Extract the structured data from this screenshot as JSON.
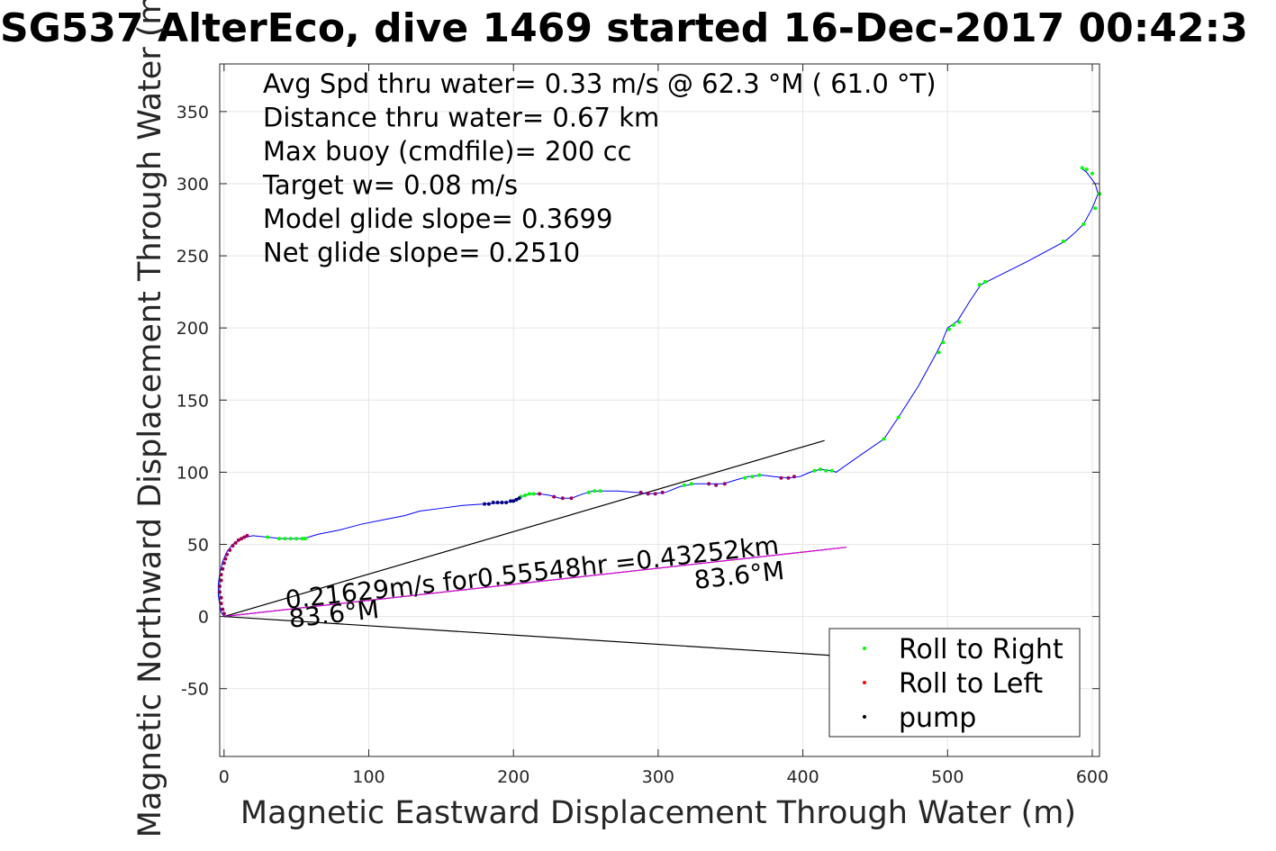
{
  "chart_data": {
    "type": "scatter",
    "title": "SG537 AlterEco, dive 1469 started 16-Dec-2017 00:42:3",
    "xlabel": "Magnetic Eastward Displacement Through Water (m)",
    "ylabel": "Magnetic Northward Displacement Through Water (m)",
    "xlim": [
      -3,
      605
    ],
    "ylim": [
      -97,
      383
    ],
    "xticks": [
      0,
      100,
      200,
      300,
      400,
      500,
      600
    ],
    "yticks": [
      -50,
      0,
      50,
      100,
      150,
      200,
      250,
      300,
      350
    ],
    "grid": true,
    "legend_position": "bottom-right",
    "annotations": [
      "Avg Spd thru water=  0.33 m/s @  62.3 °M ( 61.0 °T)",
      "Distance thru water=  0.67 km",
      "Max buoy (cmdfile)= 200 cc",
      "Target w= 0.08 m/s",
      "Model glide slope= 0.3699",
      "Net glide slope= 0.2510"
    ],
    "current_label": "0.21629m/s for0.55548hr =0.43252km",
    "current_heading_label_1": "83.6°M",
    "current_heading_label_2": "83.6°M",
    "track": [
      [
        0,
        0
      ],
      [
        -2,
        3
      ],
      [
        -3,
        8
      ],
      [
        -4,
        15
      ],
      [
        -4,
        22
      ],
      [
        -3,
        30
      ],
      [
        -1,
        38
      ],
      [
        2,
        45
      ],
      [
        6,
        50
      ],
      [
        10,
        53
      ],
      [
        15,
        55
      ],
      [
        20,
        56
      ],
      [
        30,
        55
      ],
      [
        40,
        54
      ],
      [
        50,
        54
      ],
      [
        55,
        54
      ],
      [
        65,
        57
      ],
      [
        80,
        60
      ],
      [
        95,
        64
      ],
      [
        110,
        67
      ],
      [
        125,
        70
      ],
      [
        135,
        73
      ],
      [
        150,
        75
      ],
      [
        165,
        77
      ],
      [
        180,
        78
      ],
      [
        195,
        79
      ],
      [
        200,
        80
      ],
      [
        205,
        83
      ],
      [
        212,
        85
      ],
      [
        218,
        85
      ],
      [
        225,
        84
      ],
      [
        232,
        82
      ],
      [
        240,
        82
      ],
      [
        248,
        85
      ],
      [
        255,
        87
      ],
      [
        262,
        87
      ],
      [
        272,
        87
      ],
      [
        285,
        86
      ],
      [
        295,
        85
      ],
      [
        305,
        86
      ],
      [
        315,
        90
      ],
      [
        325,
        92
      ],
      [
        335,
        92
      ],
      [
        345,
        92
      ],
      [
        355,
        95
      ],
      [
        362,
        97
      ],
      [
        372,
        98
      ],
      [
        380,
        97
      ],
      [
        390,
        96
      ],
      [
        398,
        97
      ],
      [
        405,
        100
      ],
      [
        412,
        102
      ],
      [
        420,
        101
      ],
      [
        423,
        100
      ],
      [
        440,
        112
      ],
      [
        456,
        123
      ],
      [
        466,
        138
      ],
      [
        480,
        160
      ],
      [
        492,
        182
      ],
      [
        496,
        190
      ],
      [
        500,
        200
      ],
      [
        503,
        202
      ],
      [
        507,
        205
      ],
      [
        515,
        218
      ],
      [
        523,
        230
      ],
      [
        527,
        232
      ],
      [
        555,
        246
      ],
      [
        581,
        260
      ],
      [
        588,
        266
      ],
      [
        594,
        272
      ],
      [
        600,
        283
      ],
      [
        604,
        293
      ],
      [
        602,
        300
      ],
      [
        596,
        308
      ],
      [
        592,
        311
      ]
    ],
    "series": [
      {
        "name": "Roll to Right",
        "color": "#00ff00",
        "points": [
          [
            30,
            55
          ],
          [
            38,
            54
          ],
          [
            42,
            54
          ],
          [
            46,
            54
          ],
          [
            50,
            54
          ],
          [
            54,
            54
          ],
          [
            56,
            54
          ],
          [
            205,
            83
          ],
          [
            208,
            84
          ],
          [
            211,
            85
          ],
          [
            214,
            85
          ],
          [
            252,
            86
          ],
          [
            256,
            87
          ],
          [
            260,
            87
          ],
          [
            318,
            91
          ],
          [
            323,
            92
          ],
          [
            360,
            96
          ],
          [
            365,
            97
          ],
          [
            370,
            98
          ],
          [
            408,
            101
          ],
          [
            412,
            102
          ],
          [
            416,
            101
          ],
          [
            420,
            101
          ],
          [
            456,
            123
          ],
          [
            466,
            138
          ],
          [
            494,
            183
          ],
          [
            497,
            190
          ],
          [
            501,
            199
          ],
          [
            504,
            202
          ],
          [
            508,
            204
          ],
          [
            522,
            230
          ],
          [
            526,
            232
          ],
          [
            580,
            260
          ],
          [
            594,
            272
          ],
          [
            602,
            283
          ],
          [
            605,
            293
          ],
          [
            600,
            307
          ],
          [
            596,
            310
          ],
          [
            593,
            311
          ]
        ]
      },
      {
        "name": "Roll to Left",
        "color": "#ff0000",
        "points": [
          [
            0,
            2
          ],
          [
            -1,
            5
          ],
          [
            -2,
            9
          ],
          [
            -2,
            13
          ],
          [
            -3,
            17
          ],
          [
            -3,
            21
          ],
          [
            -2,
            25
          ],
          [
            -2,
            29
          ],
          [
            -1,
            33
          ],
          [
            0,
            37
          ],
          [
            1,
            40
          ],
          [
            2,
            43
          ],
          [
            4,
            46
          ],
          [
            6,
            49
          ],
          [
            8,
            51
          ],
          [
            10,
            53
          ],
          [
            12,
            54
          ],
          [
            14,
            55
          ],
          [
            16,
            56
          ],
          [
            218,
            85
          ],
          [
            228,
            83
          ],
          [
            234,
            82
          ],
          [
            240,
            82
          ],
          [
            288,
            86
          ],
          [
            293,
            85
          ],
          [
            298,
            85
          ],
          [
            303,
            86
          ],
          [
            335,
            92
          ],
          [
            340,
            91
          ],
          [
            346,
            92
          ],
          [
            385,
            96
          ],
          [
            390,
            96
          ],
          [
            394,
            97
          ]
        ]
      },
      {
        "name": "pump",
        "color": "#000000",
        "points": [
          [
            180,
            78
          ],
          [
            183,
            78
          ],
          [
            186,
            79
          ],
          [
            189,
            79
          ],
          [
            192,
            79
          ],
          [
            195,
            79
          ],
          [
            198,
            80
          ],
          [
            200,
            80
          ],
          [
            202,
            81
          ],
          [
            204,
            82
          ]
        ]
      }
    ],
    "lines": [
      {
        "color": "#000000",
        "points": [
          [
            0,
            0
          ],
          [
            415,
            122
          ]
        ]
      },
      {
        "color": "#000000",
        "points": [
          [
            0,
            0
          ],
          [
            420,
            -27
          ]
        ]
      },
      {
        "color": "#000000",
        "points": [
          [
            0,
            0
          ],
          [
            430,
            48
          ]
        ]
      },
      {
        "color": "#ff00ff",
        "points": [
          [
            0,
            0
          ],
          [
            430,
            48
          ]
        ]
      }
    ]
  }
}
